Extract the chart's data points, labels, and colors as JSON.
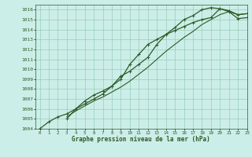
{
  "xlabel": "Graphe pression niveau de la mer (hPa)",
  "bg_color": "#cceee8",
  "grid_color": "#99ccbb",
  "line_color": "#2d5a27",
  "ylim": [
    1004,
    1016.5
  ],
  "xlim": [
    -0.5,
    23
  ],
  "yticks": [
    1004,
    1005,
    1006,
    1007,
    1008,
    1009,
    1010,
    1011,
    1012,
    1013,
    1014,
    1015,
    1016
  ],
  "xticks": [
    0,
    1,
    2,
    3,
    4,
    5,
    6,
    7,
    8,
    9,
    10,
    11,
    12,
    13,
    14,
    15,
    16,
    17,
    18,
    19,
    20,
    21,
    22,
    23
  ],
  "series": [
    {
      "y": [
        1004.0,
        1004.7,
        1005.2,
        1005.5,
        1006.0,
        1006.8,
        1007.4,
        1007.8,
        1008.3,
        1009.0,
        1010.5,
        1011.5,
        1012.5,
        1013.0,
        1013.5,
        1013.9,
        1014.3,
        1014.7,
        1015.0,
        1015.2,
        1016.1,
        1015.8,
        1015.1,
        1015.2
      ],
      "marker": "+",
      "lw": 0.9,
      "ms": 3.5
    },
    {
      "y": [
        1004.0,
        null,
        null,
        1005.0,
        1006.0,
        1006.5,
        1007.0,
        1007.5,
        1008.3,
        1009.3,
        1009.8,
        1010.5,
        1011.2,
        1012.5,
        1013.5,
        1014.2,
        1015.0,
        1015.4,
        1016.0,
        1016.2,
        1016.1,
        1015.9,
        1015.5,
        1015.6
      ],
      "marker": "+",
      "lw": 0.9,
      "ms": 3.5
    },
    {
      "y": [
        1004.0,
        null,
        null,
        1005.2,
        1005.8,
        1006.3,
        1006.8,
        1007.2,
        1007.7,
        1008.2,
        1008.8,
        1009.5,
        1010.2,
        1011.0,
        1011.8,
        1012.5,
        1013.2,
        1013.8,
        1014.5,
        1015.0,
        1015.5,
        1015.8,
        1015.5,
        1015.6
      ],
      "marker": null,
      "lw": 0.8,
      "ms": 0
    }
  ]
}
